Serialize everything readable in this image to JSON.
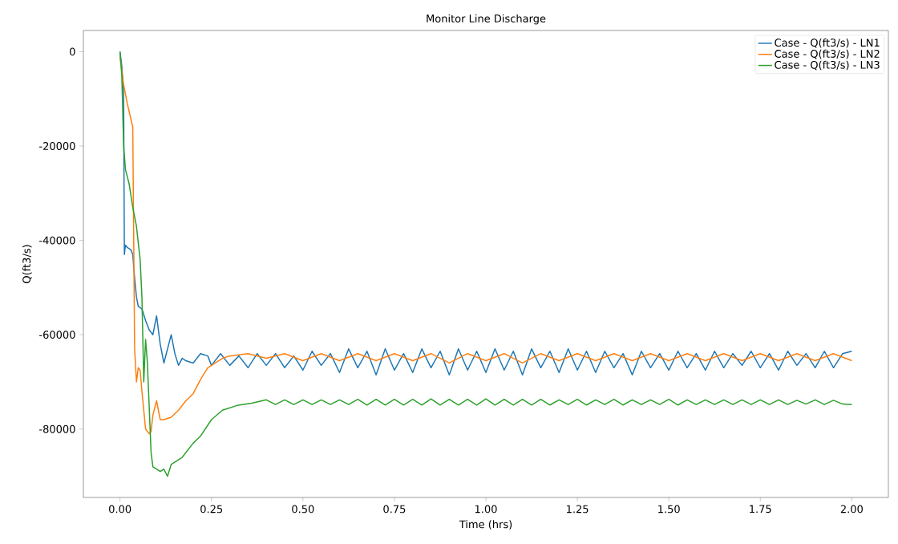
{
  "chart_data": {
    "type": "line",
    "title": "Monitor Line Discharge",
    "xlabel": "Time (hrs)",
    "ylabel": "Q(ft3/s)",
    "xlim": [
      -0.1,
      2.1
    ],
    "ylim": [
      -94500,
      4500
    ],
    "xticks": [
      {
        "value": 0,
        "label": "0.00"
      },
      {
        "value": 0.25,
        "label": "0.25"
      },
      {
        "value": 0.5,
        "label": "0.50"
      },
      {
        "value": 0.75,
        "label": "0.75"
      },
      {
        "value": 1,
        "label": "1.00"
      },
      {
        "value": 1.25,
        "label": "1.25"
      },
      {
        "value": 1.5,
        "label": "1.50"
      },
      {
        "value": 1.75,
        "label": "1.75"
      },
      {
        "value": 2,
        "label": "2.00"
      }
    ],
    "yticks": [
      0,
      -20000,
      -40000,
      -60000,
      -80000
    ],
    "legend": "top right",
    "grid": false,
    "series": [
      {
        "name": "Case - Q(ft3/s) - LN1",
        "color": "#1f77b4",
        "x": [
          0,
          0.005,
          0.01,
          0.012,
          0.015,
          0.02,
          0.03,
          0.035,
          0.04,
          0.045,
          0.05,
          0.06,
          0.07,
          0.08,
          0.09,
          0.1,
          0.11,
          0.12,
          0.13,
          0.14,
          0.15,
          0.16,
          0.17,
          0.18,
          0.2,
          0.22,
          0.24,
          0.25,
          0.275,
          0.3,
          0.325,
          0.35,
          0.375,
          0.4,
          0.425,
          0.45,
          0.475,
          0.5,
          0.525,
          0.55,
          0.575,
          0.6,
          0.625,
          0.65,
          0.675,
          0.7,
          0.725,
          0.75,
          0.775,
          0.8,
          0.825,
          0.85,
          0.875,
          0.9,
          0.925,
          0.95,
          0.975,
          1.0,
          1.025,
          1.05,
          1.075,
          1.1,
          1.125,
          1.15,
          1.175,
          1.2,
          1.225,
          1.25,
          1.275,
          1.3,
          1.325,
          1.35,
          1.375,
          1.4,
          1.425,
          1.45,
          1.475,
          1.5,
          1.525,
          1.55,
          1.575,
          1.6,
          1.625,
          1.65,
          1.675,
          1.7,
          1.725,
          1.75,
          1.775,
          1.8,
          1.825,
          1.85,
          1.875,
          1.9,
          1.925,
          1.95,
          1.975,
          2.0
        ],
        "values": [
          0,
          -3000,
          -9000,
          -43000,
          -41000,
          -41500,
          -42000,
          -43000,
          -48000,
          -52000,
          -54000,
          -54500,
          -57000,
          -59000,
          -60000,
          -56000,
          -62000,
          -66000,
          -63000,
          -60000,
          -64000,
          -66500,
          -65000,
          -65500,
          -66000,
          -64000,
          -64500,
          -66500,
          -64000,
          -66500,
          -64500,
          -67000,
          -64000,
          -66500,
          -64000,
          -67000,
          -64500,
          -67500,
          -63500,
          -66500,
          -64000,
          -68000,
          -63000,
          -67000,
          -63500,
          -68500,
          -63000,
          -67500,
          -64000,
          -68000,
          -63000,
          -67000,
          -63500,
          -68500,
          -63000,
          -67500,
          -63500,
          -68000,
          -63000,
          -67500,
          -63500,
          -68500,
          -63000,
          -67000,
          -63500,
          -68000,
          -63000,
          -67500,
          -63500,
          -68000,
          -63500,
          -67000,
          -64000,
          -68500,
          -63500,
          -67000,
          -64000,
          -67500,
          -63500,
          -67000,
          -64000,
          -67500,
          -63500,
          -67000,
          -64000,
          -66500,
          -63500,
          -67000,
          -64000,
          -67500,
          -63500,
          -66500,
          -64000,
          -67000,
          -63500,
          -67000,
          -64000,
          -63500
        ]
      },
      {
        "name": "Case - Q(ft3/s) - LN2",
        "color": "#ff7f0e",
        "x": [
          0,
          0.01,
          0.02,
          0.035,
          0.04,
          0.045,
          0.05,
          0.055,
          0.06,
          0.065,
          0.07,
          0.08,
          0.085,
          0.09,
          0.1,
          0.11,
          0.12,
          0.14,
          0.16,
          0.18,
          0.2,
          0.22,
          0.24,
          0.26,
          0.28,
          0.3,
          0.35,
          0.4,
          0.45,
          0.5,
          0.55,
          0.6,
          0.65,
          0.7,
          0.75,
          0.8,
          0.85,
          0.9,
          0.95,
          1.0,
          1.05,
          1.1,
          1.15,
          1.2,
          1.25,
          1.3,
          1.35,
          1.4,
          1.45,
          1.5,
          1.55,
          1.6,
          1.65,
          1.7,
          1.75,
          1.8,
          1.85,
          1.9,
          1.95,
          2.0
        ],
        "values": [
          -1000,
          -7000,
          -11000,
          -16000,
          -63000,
          -70000,
          -67000,
          -67500,
          -72000,
          -76000,
          -80000,
          -81000,
          -80500,
          -77000,
          -74000,
          -78000,
          -78000,
          -77500,
          -76000,
          -74000,
          -72500,
          -69500,
          -67000,
          -66000,
          -65000,
          -64500,
          -64000,
          -65000,
          -64000,
          -65500,
          -64000,
          -65500,
          -64000,
          -65500,
          -64000,
          -65500,
          -64000,
          -66000,
          -64000,
          -65500,
          -64000,
          -66000,
          -64000,
          -65500,
          -64000,
          -65500,
          -64000,
          -65500,
          -64000,
          -65500,
          -64000,
          -65500,
          -64000,
          -65500,
          -64000,
          -65500,
          -64000,
          -65500,
          -64000,
          -65500
        ]
      },
      {
        "name": "Case - Q(ft3/s) - LN3",
        "color": "#2ca02c",
        "x": [
          0,
          0.005,
          0.01,
          0.015,
          0.025,
          0.035,
          0.045,
          0.055,
          0.06,
          0.065,
          0.07,
          0.075,
          0.085,
          0.09,
          0.1,
          0.11,
          0.12,
          0.13,
          0.14,
          0.15,
          0.17,
          0.2,
          0.22,
          0.25,
          0.28,
          0.32,
          0.36,
          0.4,
          0.425,
          0.45,
          0.475,
          0.5,
          0.525,
          0.55,
          0.575,
          0.6,
          0.625,
          0.65,
          0.675,
          0.7,
          0.725,
          0.75,
          0.775,
          0.8,
          0.825,
          0.85,
          0.875,
          0.9,
          0.925,
          0.95,
          0.975,
          1.0,
          1.025,
          1.05,
          1.075,
          1.1,
          1.125,
          1.15,
          1.175,
          1.2,
          1.225,
          1.25,
          1.275,
          1.3,
          1.325,
          1.35,
          1.375,
          1.4,
          1.425,
          1.45,
          1.475,
          1.5,
          1.525,
          1.55,
          1.575,
          1.6,
          1.625,
          1.65,
          1.675,
          1.7,
          1.725,
          1.75,
          1.775,
          1.8,
          1.825,
          1.85,
          1.875,
          1.9,
          1.925,
          1.95,
          1.975,
          2.0
        ],
        "values": [
          0,
          -5000,
          -20000,
          -25000,
          -28000,
          -33000,
          -37000,
          -44000,
          -52000,
          -70000,
          -61000,
          -66000,
          -85000,
          -88000,
          -88500,
          -89000,
          -88500,
          -90000,
          -87500,
          -87000,
          -86000,
          -83000,
          -81500,
          -78000,
          -76000,
          -75000,
          -74500,
          -73800,
          -74800,
          -73800,
          -74800,
          -73800,
          -74800,
          -73800,
          -74800,
          -73800,
          -74800,
          -73700,
          -74900,
          -73700,
          -74900,
          -73700,
          -74900,
          -73700,
          -74900,
          -73600,
          -74900,
          -73700,
          -74900,
          -73700,
          -74900,
          -73600,
          -74900,
          -73700,
          -74900,
          -73700,
          -74900,
          -73700,
          -74900,
          -73800,
          -74800,
          -73700,
          -74900,
          -73800,
          -74800,
          -73700,
          -74900,
          -73800,
          -74800,
          -73800,
          -74800,
          -73700,
          -74900,
          -73800,
          -74800,
          -73800,
          -74800,
          -73800,
          -74800,
          -73800,
          -74800,
          -73800,
          -74800,
          -73800,
          -74800,
          -73900,
          -74700,
          -73800,
          -74800,
          -73900,
          -74700,
          -74800
        ]
      }
    ]
  }
}
